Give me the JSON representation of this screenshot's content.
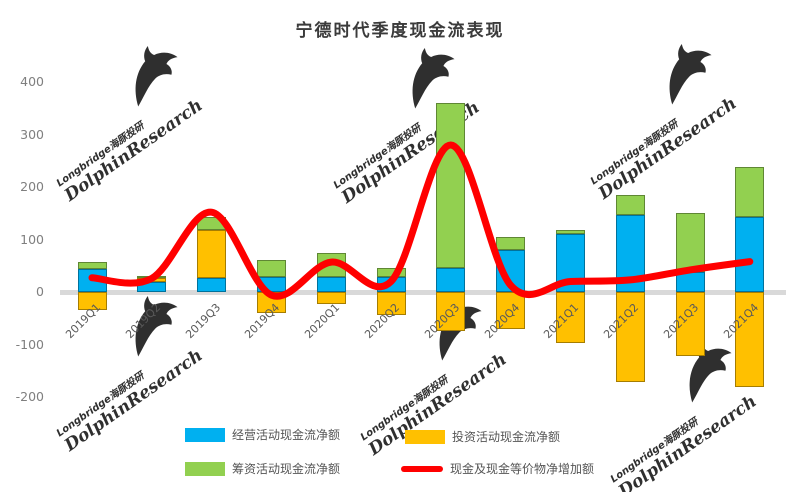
{
  "title": "宁德时代季度现金流表现",
  "watermark": {
    "brand_cn": "Longbridge海豚投研",
    "brand_en": "DolphinResearch"
  },
  "chart_data": {
    "type": "bar",
    "subtype": "stacked bars with smoothed line overlay",
    "title": "宁德时代季度现金流表现",
    "categories": [
      "2019Q1",
      "2019Q2",
      "2019Q3",
      "2019Q4",
      "2020Q1",
      "2020Q2",
      "2020Q3",
      "2020Q4",
      "2021Q1",
      "2021Q2",
      "2021Q3",
      "2021Q4"
    ],
    "series": [
      {
        "name": "经营活动现金流净额",
        "type": "bar",
        "color": "#00b0f0",
        "values": [
          43,
          19,
          26,
          29,
          29,
          29,
          45,
          80,
          110,
          147,
          38,
          143
        ]
      },
      {
        "name": "投资活动现金流净额",
        "type": "bar",
        "color": "#ffc000",
        "values": [
          -34,
          7,
          92,
          -40,
          -23,
          -44,
          -75,
          -70,
          -98,
          -172,
          -122,
          -181
        ]
      },
      {
        "name": "筹资活动现金流净额",
        "type": "bar",
        "color": "#92d050",
        "values": [
          15,
          5,
          25,
          32,
          45,
          16,
          315,
          25,
          9,
          38,
          113,
          95
        ]
      },
      {
        "name": "现金及现金等价物净增加额",
        "type": "line",
        "color": "#ff0000",
        "values": [
          27,
          26,
          152,
          -6,
          57,
          20,
          280,
          13,
          20,
          23,
          42,
          58
        ]
      }
    ],
    "xlabel": "",
    "ylabel": "",
    "ylim": [
      -200,
      400
    ],
    "yticks": [
      400,
      300,
      200,
      100,
      0,
      -100,
      -200
    ],
    "grid": false,
    "legend_position": "bottom",
    "x_tick_rotation": 45
  }
}
